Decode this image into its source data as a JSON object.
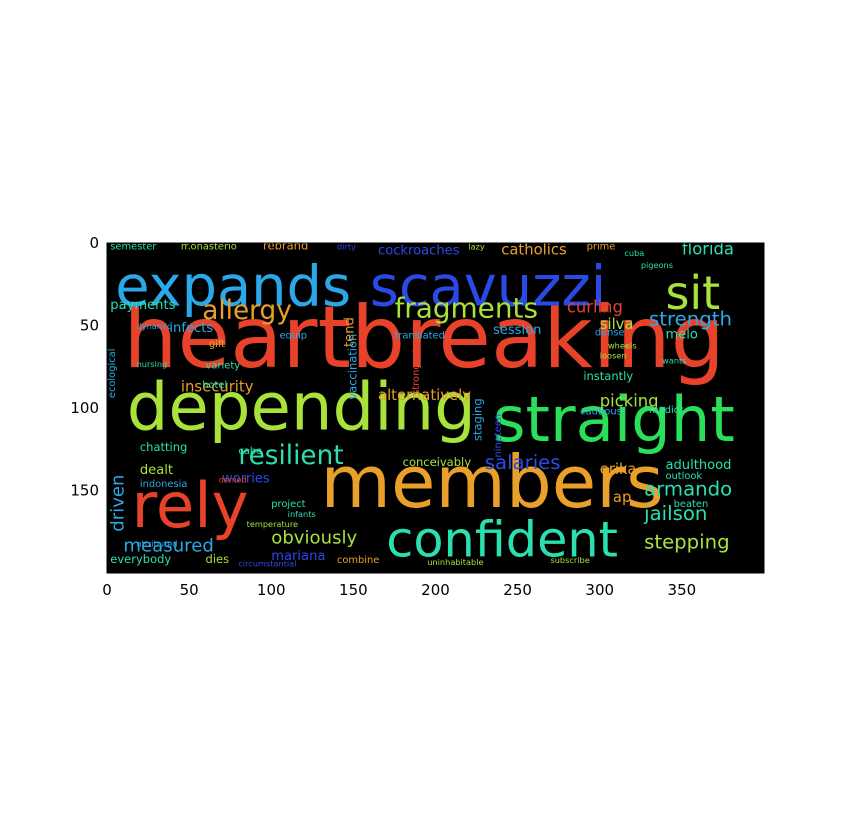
{
  "chart_data": {
    "type": "image",
    "title": "",
    "xlabel": "",
    "ylabel": "",
    "xlim": [
      0,
      400
    ],
    "ylim": [
      200,
      0
    ],
    "x_ticks": [
      0,
      50,
      100,
      150,
      200,
      250,
      300,
      350
    ],
    "y_ticks": [
      0,
      50,
      100,
      150
    ],
    "background": "#000000",
    "words": [
      {
        "text": "heartbreaking",
        "x": 10,
        "y": 75,
        "size": 52,
        "color": "#e8432a"
      },
      {
        "text": "members",
        "x": 130,
        "y": 160,
        "size": 44,
        "color": "#e8a02a"
      },
      {
        "text": "depending",
        "x": 12,
        "y": 113,
        "size": 40,
        "color": "#a8e23a"
      },
      {
        "text": "straight",
        "x": 235,
        "y": 120,
        "size": 38,
        "color": "#2ae05a"
      },
      {
        "text": "rely",
        "x": 15,
        "y": 172,
        "size": 38,
        "color": "#e8432a"
      },
      {
        "text": "expands",
        "x": 5,
        "y": 38,
        "size": 34,
        "color": "#2aa8e8"
      },
      {
        "text": "scavuzzi",
        "x": 160,
        "y": 38,
        "size": 34,
        "color": "#2a4ae8"
      },
      {
        "text": "confident",
        "x": 170,
        "y": 190,
        "size": 30,
        "color": "#2ae0b0"
      },
      {
        "text": "sit",
        "x": 340,
        "y": 40,
        "size": 28,
        "color": "#a8e23a"
      },
      {
        "text": "fragments",
        "x": 175,
        "y": 45,
        "size": 17,
        "color": "#a8e23a"
      },
      {
        "text": "allergy",
        "x": 58,
        "y": 46,
        "size": 16,
        "color": "#e8a02a"
      },
      {
        "text": "resilient",
        "x": 80,
        "y": 134,
        "size": 16,
        "color": "#2ae0b0"
      },
      {
        "text": "strength",
        "x": 330,
        "y": 50,
        "size": 12,
        "color": "#2aa8e8"
      },
      {
        "text": "curling",
        "x": 280,
        "y": 42,
        "size": 10,
        "color": "#e8432a"
      },
      {
        "text": "salaries",
        "x": 230,
        "y": 137,
        "size": 12,
        "color": "#2a4ae8"
      },
      {
        "text": "armando",
        "x": 327,
        "y": 153,
        "size": 12,
        "color": "#2ae0b0"
      },
      {
        "text": "jailson",
        "x": 327,
        "y": 168,
        "size": 12,
        "color": "#2ae0b0"
      },
      {
        "text": "stepping",
        "x": 327,
        "y": 185,
        "size": 12,
        "color": "#a8e23a"
      },
      {
        "text": "measured",
        "x": 10,
        "y": 187,
        "size": 11,
        "color": "#2aa8e8"
      },
      {
        "text": "obviously",
        "x": 100,
        "y": 182,
        "size": 11,
        "color": "#a8e23a"
      },
      {
        "text": "driven",
        "x": 10,
        "y": 175,
        "size": 11,
        "color": "#2aa8e8",
        "rotate": -90
      },
      {
        "text": "florida",
        "x": 350,
        "y": 7,
        "size": 10,
        "color": "#2ae0b0"
      },
      {
        "text": "catholics",
        "x": 240,
        "y": 7,
        "size": 9,
        "color": "#e8a02a"
      },
      {
        "text": "cockroaches",
        "x": 165,
        "y": 7,
        "size": 8,
        "color": "#2a4ae8"
      },
      {
        "text": "picking",
        "x": 300,
        "y": 99,
        "size": 10,
        "color": "#a8e23a"
      },
      {
        "text": "insecurity",
        "x": 45,
        "y": 90,
        "size": 9,
        "color": "#e8a02a"
      },
      {
        "text": "alternatively",
        "x": 165,
        "y": 95,
        "size": 9,
        "color": "#e8a02a"
      },
      {
        "text": "session",
        "x": 235,
        "y": 55,
        "size": 8,
        "color": "#2aa8e8"
      },
      {
        "text": "silva",
        "x": 300,
        "y": 52,
        "size": 9,
        "color": "#a8e23a"
      },
      {
        "text": "payments",
        "x": 2,
        "y": 40,
        "size": 8,
        "color": "#2ae0b0"
      },
      {
        "text": "infects",
        "x": 38,
        "y": 54,
        "size": 8,
        "color": "#2aa8e8"
      },
      {
        "text": "melo",
        "x": 340,
        "y": 58,
        "size": 8,
        "color": "#2ae0b0"
      },
      {
        "text": "erika",
        "x": 300,
        "y": 140,
        "size": 9,
        "color": "#e8a02a"
      },
      {
        "text": "adulthood",
        "x": 340,
        "y": 137,
        "size": 8,
        "color": "#2ae0b0"
      },
      {
        "text": "dealt",
        "x": 20,
        "y": 140,
        "size": 8,
        "color": "#a8e23a"
      },
      {
        "text": "worries",
        "x": 70,
        "y": 145,
        "size": 8,
        "color": "#2a4ae8"
      },
      {
        "text": "mariana",
        "x": 100,
        "y": 192,
        "size": 8,
        "color": "#2a4ae8"
      },
      {
        "text": "ap",
        "x": 308,
        "y": 157,
        "size": 9,
        "color": "#e8a02a"
      },
      {
        "text": "tend",
        "x": 150,
        "y": 63,
        "size": 8,
        "color": "#e8a02a",
        "rotate": -90
      },
      {
        "text": "vaccination",
        "x": 152,
        "y": 95,
        "size": 7,
        "color": "#2aa8e8",
        "rotate": -90
      },
      {
        "text": "staging",
        "x": 228,
        "y": 120,
        "size": 7,
        "color": "#2aa8e8",
        "rotate": -90
      },
      {
        "text": "conceivably",
        "x": 180,
        "y": 135,
        "size": 7,
        "color": "#a8e23a"
      },
      {
        "text": "everybody",
        "x": 2,
        "y": 194,
        "size": 7,
        "color": "#2ae0b0"
      },
      {
        "text": "dies",
        "x": 60,
        "y": 194,
        "size": 7,
        "color": "#a8e23a"
      },
      {
        "text": "chatting",
        "x": 20,
        "y": 126,
        "size": 7,
        "color": "#2ae0b0"
      },
      {
        "text": "indonesia",
        "x": 20,
        "y": 148,
        "size": 6,
        "color": "#2aa8e8"
      },
      {
        "text": "variety",
        "x": 60,
        "y": 76,
        "size": 6,
        "color": "#2ae0b0"
      },
      {
        "text": "hotel",
        "x": 58,
        "y": 88,
        "size": 6,
        "color": "#2ae0b0"
      },
      {
        "text": "instantly",
        "x": 290,
        "y": 83,
        "size": 7,
        "color": "#2ae0b0"
      },
      {
        "text": "outlook",
        "x": 340,
        "y": 143,
        "size": 6,
        "color": "#2ae0b0"
      },
      {
        "text": "beaten",
        "x": 345,
        "y": 160,
        "size": 6,
        "color": "#2ae0b0"
      },
      {
        "text": "dense",
        "x": 297,
        "y": 56,
        "size": 6,
        "color": "#2aa8e8"
      },
      {
        "text": "translated",
        "x": 175,
        "y": 58,
        "size": 6,
        "color": "#2aa8e8"
      },
      {
        "text": "semester",
        "x": 2,
        "y": 4,
        "size": 6,
        "color": "#2ae0b0"
      },
      {
        "text": "monasterio",
        "x": 45,
        "y": 4,
        "size": 6,
        "color": "#a8e23a"
      },
      {
        "text": "rebrand",
        "x": 95,
        "y": 4,
        "size": 7,
        "color": "#e8a02a"
      },
      {
        "text": "prime",
        "x": 292,
        "y": 4,
        "size": 6,
        "color": "#e8a02a"
      },
      {
        "text": "cabo",
        "x": 80,
        "y": 128,
        "size": 6,
        "color": "#2ae0b0"
      },
      {
        "text": "gift",
        "x": 62,
        "y": 63,
        "size": 6,
        "color": "#e8a02a"
      },
      {
        "text": "equip",
        "x": 105,
        "y": 58,
        "size": 6,
        "color": "#2aa8e8"
      },
      {
        "text": "dynamic",
        "x": 18,
        "y": 52,
        "size": 5,
        "color": "#2aa8e8"
      },
      {
        "text": "ecological",
        "x": 5,
        "y": 94,
        "size": 6,
        "color": "#2aa8e8",
        "rotate": -90
      },
      {
        "text": "nursing",
        "x": 18,
        "y": 75,
        "size": 5,
        "color": "#2ae0b0"
      },
      {
        "text": "infants",
        "x": 110,
        "y": 166,
        "size": 5,
        "color": "#2ae0b0"
      },
      {
        "text": "project",
        "x": 100,
        "y": 160,
        "size": 6,
        "color": "#2ae0b0"
      },
      {
        "text": "combine",
        "x": 140,
        "y": 194,
        "size": 6,
        "color": "#e8a02a"
      },
      {
        "text": "medics",
        "x": 330,
        "y": 103,
        "size": 6,
        "color": "#2ae0b0"
      },
      {
        "text": "cautious",
        "x": 288,
        "y": 104,
        "size": 6,
        "color": "#2aa8e8"
      },
      {
        "text": "nineteen",
        "x": 240,
        "y": 130,
        "size": 6,
        "color": "#2a4ae8",
        "rotate": -90
      },
      {
        "text": "strongest",
        "x": 190,
        "y": 92,
        "size": 6,
        "color": "#e8432a",
        "rotate": -90
      },
      {
        "text": "temperature",
        "x": 85,
        "y": 172,
        "size": 5,
        "color": "#a8e23a"
      },
      {
        "text": "attributed",
        "x": 18,
        "y": 184,
        "size": 5,
        "color": "#2aa8e8"
      },
      {
        "text": "circumstantial",
        "x": 80,
        "y": 196,
        "size": 5,
        "color": "#2a4ae8"
      },
      {
        "text": "denied",
        "x": 68,
        "y": 145,
        "size": 5,
        "color": "#e8432a"
      },
      {
        "text": "loosen",
        "x": 300,
        "y": 70,
        "size": 5,
        "color": "#a8e23a"
      },
      {
        "text": "wheels",
        "x": 305,
        "y": 64,
        "size": 5,
        "color": "#a8e23a"
      },
      {
        "text": "wants",
        "x": 338,
        "y": 73,
        "size": 5,
        "color": "#2ae0b0"
      },
      {
        "text": "pigeons",
        "x": 325,
        "y": 15,
        "size": 5,
        "color": "#2ae0b0"
      },
      {
        "text": "cuba",
        "x": 315,
        "y": 8,
        "size": 5,
        "color": "#2ae0b0"
      },
      {
        "text": "uninhabitable",
        "x": 195,
        "y": 195,
        "size": 5,
        "color": "#a8e23a"
      },
      {
        "text": "subscribe",
        "x": 270,
        "y": 194,
        "size": 5,
        "color": "#a8e23a"
      },
      {
        "text": "dirty",
        "x": 140,
        "y": 4,
        "size": 5,
        "color": "#2a4ae8"
      },
      {
        "text": "lazy",
        "x": 220,
        "y": 4,
        "size": 5,
        "color": "#a8e23a"
      }
    ]
  }
}
